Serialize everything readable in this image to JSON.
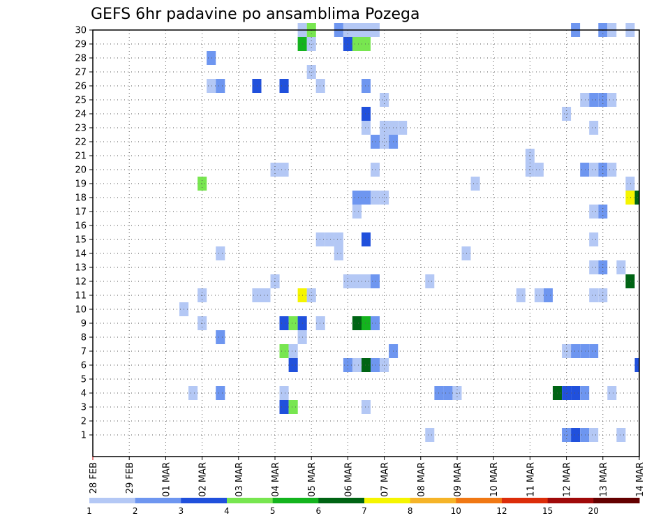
{
  "chart_data": {
    "type": "heatmap",
    "title": "GEFS 6hr padavine po ansamblima Pozega",
    "xlabel": "",
    "ylabel": "",
    "x_tick_labels": [
      "28 FEB",
      "29 FEB",
      "01 MAR",
      "02 MAR",
      "03 MAR",
      "04 MAR",
      "05 MAR",
      "06 MAR",
      "07 MAR",
      "08 MAR",
      "09 MAR",
      "10 MAR",
      "11 MAR",
      "12 MAR",
      "13 MAR",
      "14 MAR"
    ],
    "y_tick_labels": [
      "1",
      "2",
      "3",
      "4",
      "5",
      "6",
      "7",
      "8",
      "9",
      "10",
      "11",
      "12",
      "13",
      "14",
      "15",
      "16",
      "17",
      "18",
      "19",
      "20",
      "21",
      "22",
      "23",
      "24",
      "25",
      "26",
      "27",
      "28",
      "29",
      "30"
    ],
    "x_steps_per_day": 4,
    "x_range_steps": [
      0,
      60
    ],
    "y_range": [
      0,
      30
    ],
    "grid": true,
    "legend": {
      "position": "bottom",
      "thresholds": [
        "1",
        "2",
        "3",
        "4",
        "5",
        "6",
        "7",
        "8",
        "10",
        "12",
        "15",
        "20"
      ],
      "colors": [
        "#b4c8f5",
        "#6e96f0",
        "#2050dc",
        "#78e650",
        "#14b41e",
        "#006414",
        "#f5f500",
        "#f5b428",
        "#f07814",
        "#dc2d0a",
        "#a00a0a",
        "#640000"
      ]
    },
    "cells": [
      [
        23,
        30,
        "v"
      ],
      [
        24,
        30,
        "s"
      ],
      [
        27,
        30,
        "m"
      ],
      [
        28,
        30,
        "v"
      ],
      [
        29,
        30,
        "v"
      ],
      [
        30,
        30,
        "v"
      ],
      [
        31,
        30,
        "v"
      ],
      [
        53,
        30,
        "m"
      ],
      [
        56,
        30,
        "m"
      ],
      [
        57,
        30,
        "v"
      ],
      [
        59,
        30,
        "v"
      ],
      [
        23,
        29,
        "G"
      ],
      [
        24,
        29,
        "v"
      ],
      [
        28,
        29,
        "b"
      ],
      [
        29,
        29,
        "s"
      ],
      [
        30,
        29,
        "s"
      ],
      [
        13,
        28,
        "m"
      ],
      [
        24,
        27,
        "v"
      ],
      [
        13,
        26,
        "v"
      ],
      [
        14,
        26,
        "m"
      ],
      [
        18,
        26,
        "b"
      ],
      [
        21,
        26,
        "b"
      ],
      [
        25,
        26,
        "v"
      ],
      [
        30,
        26,
        "m"
      ],
      [
        32,
        25,
        "v"
      ],
      [
        54,
        25,
        "v"
      ],
      [
        55,
        25,
        "m"
      ],
      [
        56,
        25,
        "m"
      ],
      [
        57,
        25,
        "v"
      ],
      [
        30,
        24,
        "b"
      ],
      [
        52,
        24,
        "v"
      ],
      [
        30,
        23,
        "v"
      ],
      [
        32,
        23,
        "v"
      ],
      [
        33,
        23,
        "v"
      ],
      [
        34,
        23,
        "v"
      ],
      [
        55,
        23,
        "v"
      ],
      [
        31,
        22,
        "m"
      ],
      [
        32,
        22,
        "v"
      ],
      [
        33,
        22,
        "m"
      ],
      [
        48,
        21,
        "v"
      ],
      [
        20,
        20,
        "v"
      ],
      [
        21,
        20,
        "v"
      ],
      [
        31,
        20,
        "v"
      ],
      [
        48,
        20,
        "v"
      ],
      [
        49,
        20,
        "v"
      ],
      [
        54,
        20,
        "m"
      ],
      [
        55,
        20,
        "v"
      ],
      [
        56,
        20,
        "m"
      ],
      [
        57,
        20,
        "v"
      ],
      [
        12,
        19,
        "s"
      ],
      [
        42,
        19,
        "v"
      ],
      [
        59,
        19,
        "v"
      ],
      [
        29,
        18,
        "m"
      ],
      [
        30,
        18,
        "m"
      ],
      [
        31,
        18,
        "v"
      ],
      [
        32,
        18,
        "v"
      ],
      [
        59,
        18,
        "y"
      ],
      [
        60,
        18,
        "D"
      ],
      [
        29,
        17,
        "v"
      ],
      [
        55,
        17,
        "v"
      ],
      [
        56,
        17,
        "m"
      ],
      [
        55,
        15,
        "v"
      ],
      [
        25,
        15,
        "v"
      ],
      [
        26,
        15,
        "v"
      ],
      [
        27,
        15,
        "v"
      ],
      [
        30,
        15,
        "b"
      ],
      [
        14,
        14,
        "v"
      ],
      [
        27,
        14,
        "v"
      ],
      [
        41,
        14,
        "v"
      ],
      [
        55,
        13,
        "v"
      ],
      [
        56,
        13,
        "m"
      ],
      [
        58,
        13,
        "v"
      ],
      [
        20,
        12,
        "v"
      ],
      [
        28,
        12,
        "v"
      ],
      [
        29,
        12,
        "v"
      ],
      [
        30,
        12,
        "v"
      ],
      [
        31,
        12,
        "m"
      ],
      [
        37,
        12,
        "v"
      ],
      [
        59,
        12,
        "D"
      ],
      [
        12,
        11,
        "v"
      ],
      [
        18,
        11,
        "v"
      ],
      [
        19,
        11,
        "v"
      ],
      [
        23,
        11,
        "y"
      ],
      [
        24,
        11,
        "v"
      ],
      [
        47,
        11,
        "v"
      ],
      [
        49,
        11,
        "v"
      ],
      [
        50,
        11,
        "m"
      ],
      [
        55,
        11,
        "v"
      ],
      [
        56,
        11,
        "v"
      ],
      [
        10,
        10,
        "v"
      ],
      [
        12,
        9,
        "v"
      ],
      [
        21,
        9,
        "b"
      ],
      [
        22,
        9,
        "s"
      ],
      [
        23,
        9,
        "b"
      ],
      [
        25,
        9,
        "v"
      ],
      [
        29,
        9,
        "D"
      ],
      [
        30,
        9,
        "G"
      ],
      [
        31,
        9,
        "m"
      ],
      [
        14,
        8,
        "m"
      ],
      [
        23,
        8,
        "v"
      ],
      [
        21,
        7,
        "s"
      ],
      [
        22,
        7,
        "v"
      ],
      [
        33,
        7,
        "m"
      ],
      [
        52,
        7,
        "v"
      ],
      [
        53,
        7,
        "m"
      ],
      [
        54,
        7,
        "m"
      ],
      [
        55,
        7,
        "m"
      ],
      [
        22,
        6,
        "b"
      ],
      [
        28,
        6,
        "m"
      ],
      [
        29,
        6,
        "v"
      ],
      [
        30,
        6,
        "D"
      ],
      [
        31,
        6,
        "m"
      ],
      [
        32,
        6,
        "v"
      ],
      [
        60,
        6,
        "b"
      ],
      [
        11,
        4,
        "v"
      ],
      [
        14,
        4,
        "m"
      ],
      [
        21,
        4,
        "v"
      ],
      [
        38,
        4,
        "m"
      ],
      [
        39,
        4,
        "m"
      ],
      [
        40,
        4,
        "v"
      ],
      [
        51,
        4,
        "D"
      ],
      [
        52,
        4,
        "b"
      ],
      [
        53,
        4,
        "b"
      ],
      [
        54,
        4,
        "m"
      ],
      [
        57,
        4,
        "v"
      ],
      [
        21,
        3,
        "b"
      ],
      [
        22,
        3,
        "s"
      ],
      [
        30,
        3,
        "v"
      ],
      [
        37,
        1,
        "v"
      ],
      [
        52,
        1,
        "m"
      ],
      [
        53,
        1,
        "b"
      ],
      [
        54,
        1,
        "m"
      ],
      [
        55,
        1,
        "v"
      ],
      [
        58,
        1,
        "v"
      ]
    ]
  }
}
